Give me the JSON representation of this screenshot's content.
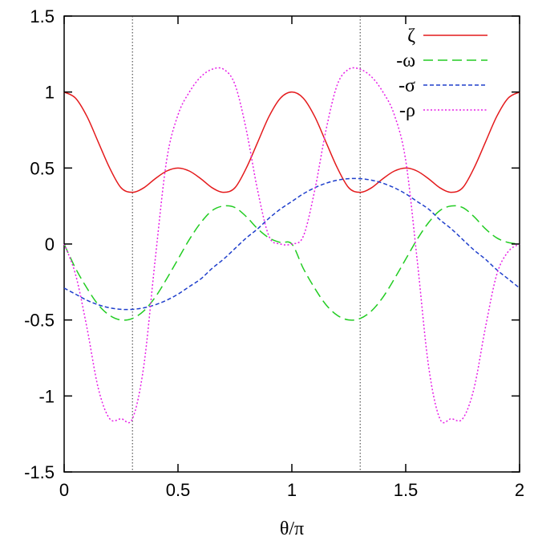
{
  "chart_data": {
    "type": "line",
    "title": "",
    "xlabel": "θ/π",
    "ylabel": "",
    "xlim": [
      0,
      2
    ],
    "ylim": [
      -1.5,
      1.5
    ],
    "x_ticks": [
      0,
      0.5,
      1,
      1.5,
      2
    ],
    "x_tick_labels": [
      "0",
      "0.5",
      "1",
      "1.5",
      "2"
    ],
    "y_ticks": [
      -1.5,
      -1,
      -0.5,
      0,
      0.5,
      1,
      1.5
    ],
    "y_tick_labels": [
      "-1.5",
      "-1",
      "-0.5",
      "0",
      "0.5",
      "1",
      "1.5"
    ],
    "grid": false,
    "legend_position": "top-right",
    "vertical_reference_lines": [
      0.3,
      1.3
    ],
    "x": [
      0,
      0.05,
      0.1,
      0.15,
      0.2,
      0.25,
      0.3,
      0.35,
      0.4,
      0.45,
      0.5,
      0.55,
      0.6,
      0.65,
      0.7,
      0.75,
      0.8,
      0.85,
      0.9,
      0.95,
      1,
      1.05,
      1.1,
      1.15,
      1.2,
      1.25,
      1.3,
      1.35,
      1.4,
      1.45,
      1.5,
      1.55,
      1.6,
      1.65,
      1.7,
      1.75,
      1.8,
      1.85,
      1.9,
      1.95,
      2
    ],
    "series": [
      {
        "name": "ζ",
        "color": "#e41a1c",
        "dash": "solid",
        "values": [
          1,
          0.96,
          0.84,
          0.67,
          0.5,
          0.37,
          0.34,
          0.37,
          0.43,
          0.48,
          0.5,
          0.48,
          0.43,
          0.37,
          0.34,
          0.37,
          0.5,
          0.67,
          0.84,
          0.96,
          1,
          0.96,
          0.84,
          0.67,
          0.5,
          0.37,
          0.34,
          0.37,
          0.43,
          0.48,
          0.5,
          0.48,
          0.43,
          0.37,
          0.34,
          0.37,
          0.5,
          0.67,
          0.84,
          0.96,
          1
        ]
      },
      {
        "name": "-ω",
        "color": "#22cc22",
        "dash": "long",
        "values": [
          0,
          -0.16,
          -0.29,
          -0.4,
          -0.47,
          -0.5,
          -0.49,
          -0.44,
          -0.35,
          -0.23,
          -0.1,
          0.03,
          0.14,
          0.22,
          0.25,
          0.24,
          0.18,
          0.1,
          0.04,
          0.01,
          0,
          -0.16,
          -0.29,
          -0.4,
          -0.47,
          -0.5,
          -0.49,
          -0.44,
          -0.35,
          -0.23,
          -0.1,
          0.03,
          0.14,
          0.22,
          0.25,
          0.24,
          0.18,
          0.1,
          0.04,
          0.01,
          0
        ]
      },
      {
        "name": "-σ",
        "color": "#1f3fcc",
        "dash": "short",
        "values": [
          -0.29,
          -0.33,
          -0.37,
          -0.4,
          -0.42,
          -0.43,
          -0.43,
          -0.42,
          -0.4,
          -0.37,
          -0.33,
          -0.28,
          -0.23,
          -0.16,
          -0.1,
          -0.03,
          0.04,
          0.1,
          0.17,
          0.23,
          0.28,
          0.33,
          0.37,
          0.4,
          0.42,
          0.43,
          0.43,
          0.42,
          0.4,
          0.37,
          0.33,
          0.28,
          0.23,
          0.16,
          0.1,
          0.03,
          -0.04,
          -0.1,
          -0.17,
          -0.23,
          -0.29
        ]
      },
      {
        "name": "-ρ",
        "color": "#e61ee6",
        "dash": "dot",
        "values": [
          0,
          -0.2,
          -0.55,
          -0.95,
          -1.15,
          -1.15,
          -1.15,
          -0.8,
          -0.1,
          0.55,
          0.85,
          1.0,
          1.1,
          1.15,
          1.15,
          1.05,
          0.75,
          0.35,
          0.05,
          0,
          0,
          0.05,
          0.35,
          0.75,
          1.05,
          1.15,
          1.15,
          1.1,
          1.0,
          0.85,
          0.55,
          -0.1,
          -0.8,
          -1.15,
          -1.15,
          -1.15,
          -0.95,
          -0.55,
          -0.2,
          -0.05,
          0
        ]
      }
    ]
  }
}
